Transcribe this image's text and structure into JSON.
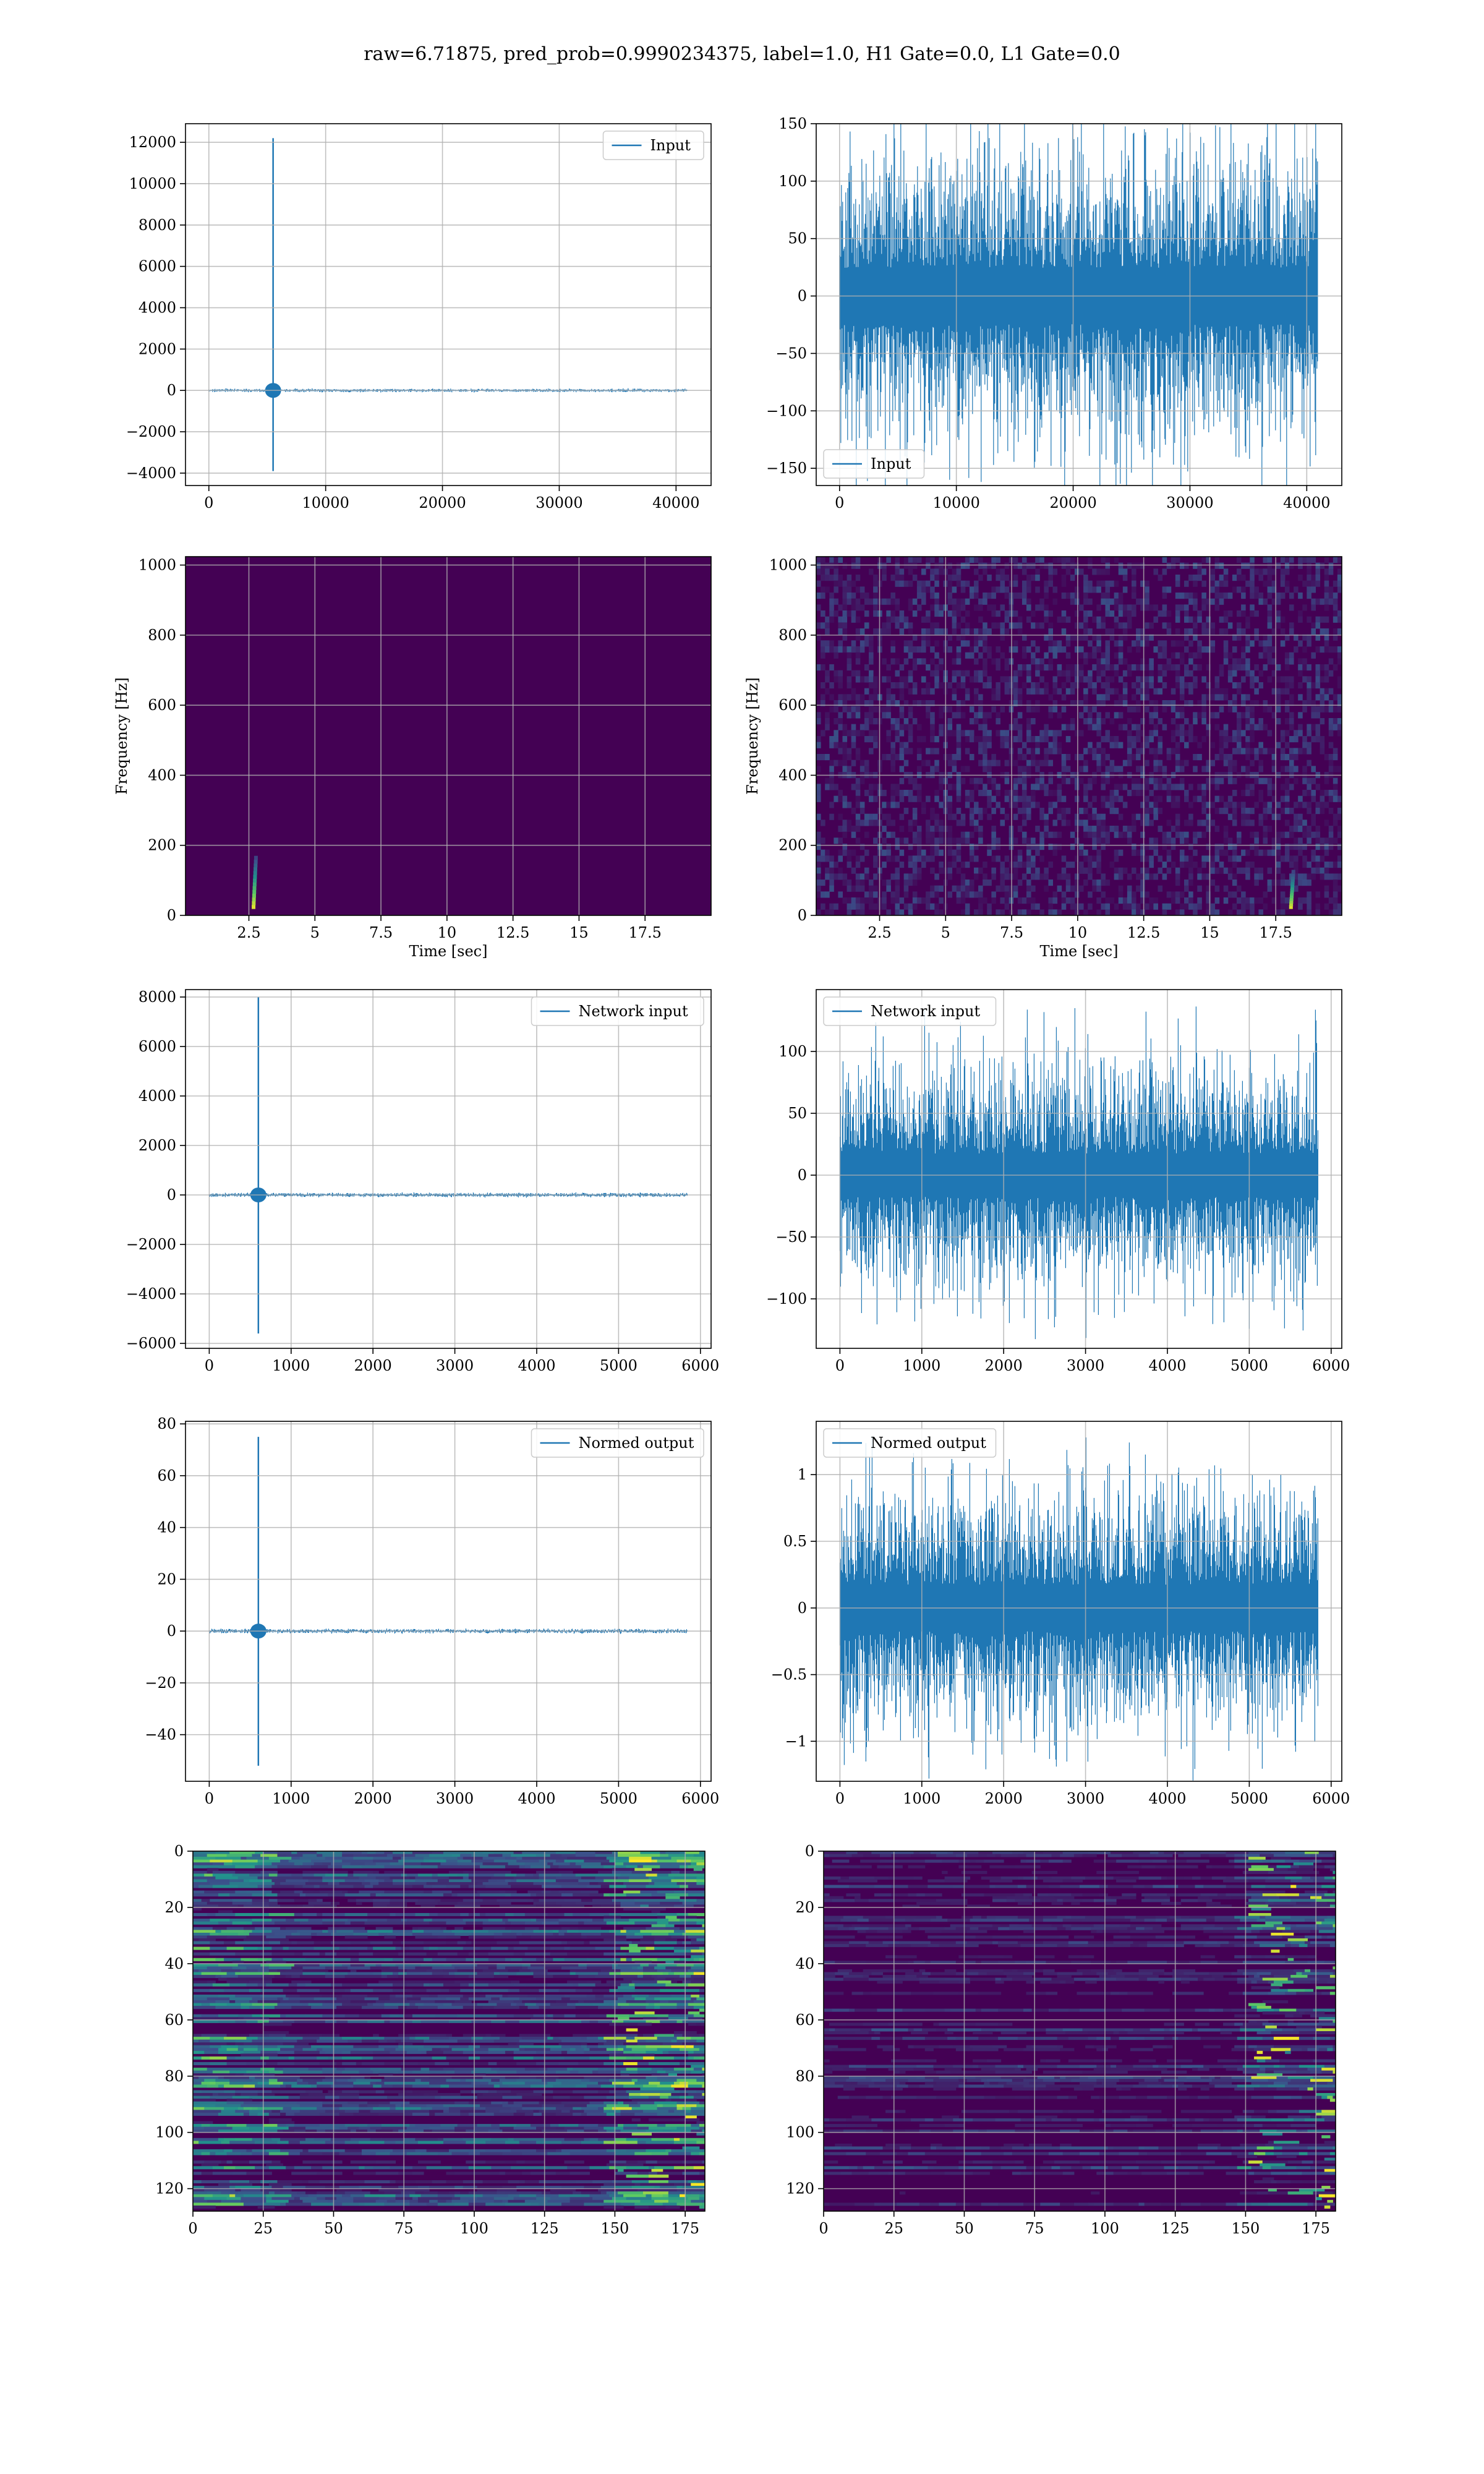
{
  "suptitle": "raw=6.71875, pred_prob=0.9990234375, label=1.0, H1 Gate=0.0, L1 Gate=0.0",
  "colors": {
    "line": "#1f77b4",
    "viridis_dark": "#440154",
    "grid": "#b0b0b0"
  },
  "chart_data": [
    {
      "id": "r1c1",
      "type": "line",
      "legend": "Input",
      "legend_loc": "upper right",
      "xlim": [
        -2000,
        43000
      ],
      "ylim": [
        -4600,
        12900
      ],
      "xticks": [
        0,
        10000,
        20000,
        30000,
        40000
      ],
      "yticks": [
        -4000,
        -2000,
        0,
        2000,
        4000,
        6000,
        8000,
        10000,
        12000
      ],
      "signal": {
        "n": 40960,
        "noise_amp": 40,
        "spike_x": 5500,
        "spike_max": 12200,
        "spike_min": -3900
      }
    },
    {
      "id": "r1c2",
      "type": "line",
      "legend": "Input",
      "legend_loc": "lower left",
      "xlim": [
        -2000,
        43000
      ],
      "ylim": [
        -165,
        150
      ],
      "xticks": [
        0,
        10000,
        20000,
        30000,
        40000
      ],
      "yticks": [
        -150,
        -100,
        -50,
        0,
        50,
        100,
        150
      ],
      "signal": {
        "n": 40960,
        "noise_amp": 70,
        "max": 134,
        "min": -155
      }
    },
    {
      "id": "r2c1",
      "type": "heatmap",
      "xlabel": "Time [sec]",
      "ylabel": "Frequency [Hz]",
      "xlim": [
        0.1,
        20
      ],
      "ylim": [
        0,
        1024
      ],
      "xticks": [
        2.5,
        5.0,
        7.5,
        10.0,
        12.5,
        15.0,
        17.5
      ],
      "yticks": [
        0,
        200,
        400,
        600,
        800,
        1000
      ],
      "chirp": {
        "t": 2.7,
        "fmin": 20,
        "fmax": 160
      }
    },
    {
      "id": "r2c2",
      "type": "heatmap",
      "xlabel": "Time [sec]",
      "ylabel": "Frequency [Hz]",
      "xlim": [
        0.1,
        20
      ],
      "ylim": [
        0,
        1024
      ],
      "xticks": [
        2.5,
        5.0,
        7.5,
        10.0,
        12.5,
        15.0,
        17.5
      ],
      "yticks": [
        0,
        200,
        400,
        600,
        800,
        1000
      ],
      "chirp": {
        "t": 18.1,
        "fmin": 20,
        "fmax": 120
      }
    },
    {
      "id": "r3c1",
      "type": "line",
      "legend": "Network input",
      "legend_loc": "upper right",
      "xlim": [
        -290,
        6130
      ],
      "ylim": [
        -6200,
        8300
      ],
      "xticks": [
        0,
        1000,
        2000,
        3000,
        4000,
        5000,
        6000
      ],
      "yticks": [
        -6000,
        -4000,
        -2000,
        0,
        2000,
        4000,
        6000,
        8000
      ],
      "signal": {
        "n": 5840,
        "noise_amp": 40,
        "spike_x": 600,
        "spike_max": 8000,
        "spike_min": -5600
      }
    },
    {
      "id": "r3c2",
      "type": "line",
      "legend": "Network input",
      "legend_loc": "upper left",
      "xlim": [
        -290,
        6130
      ],
      "ylim": [
        -140,
        150
      ],
      "xticks": [
        0,
        1000,
        2000,
        3000,
        4000,
        5000,
        6000
      ],
      "yticks": [
        -100,
        -50,
        0,
        50,
        100
      ],
      "signal": {
        "n": 5840,
        "noise_amp": 50,
        "max": 136,
        "min": -125
      }
    },
    {
      "id": "r4c1",
      "type": "line",
      "legend": "Normed output",
      "legend_loc": "upper right",
      "xlim": [
        -290,
        6130
      ],
      "ylim": [
        -58,
        81
      ],
      "xticks": [
        0,
        1000,
        2000,
        3000,
        4000,
        5000,
        6000
      ],
      "yticks": [
        -40,
        -20,
        0,
        20,
        40,
        60,
        80
      ],
      "signal": {
        "n": 5840,
        "noise_amp": 0.4,
        "spike_x": 600,
        "spike_max": 75,
        "spike_min": -52
      }
    },
    {
      "id": "r4c2",
      "type": "line",
      "legend": "Normed output",
      "legend_loc": "upper left",
      "xlim": [
        -290,
        6130
      ],
      "ylim": [
        -1.3,
        1.4
      ],
      "xticks": [
        0,
        1000,
        2000,
        3000,
        4000,
        5000,
        6000
      ],
      "yticks": [
        -1.0,
        -0.5,
        0.0,
        0.5,
        1.0
      ],
      "signal": {
        "n": 5840,
        "noise_amp": 0.5,
        "max": 1.1,
        "min": -1.15
      }
    },
    {
      "id": "r5c1",
      "type": "heatmap",
      "xlim": [
        0,
        182
      ],
      "ylim": [
        128,
        0
      ],
      "xticks": [
        0,
        25,
        50,
        75,
        100,
        125,
        150,
        175
      ],
      "yticks": [
        0,
        20,
        40,
        60,
        80,
        100,
        120
      ]
    },
    {
      "id": "r5c2",
      "type": "heatmap",
      "xlim": [
        0,
        182
      ],
      "ylim": [
        128,
        0
      ],
      "xticks": [
        0,
        25,
        50,
        75,
        100,
        125,
        150,
        175
      ],
      "yticks": [
        0,
        20,
        40,
        60,
        80,
        100,
        120
      ]
    }
  ]
}
